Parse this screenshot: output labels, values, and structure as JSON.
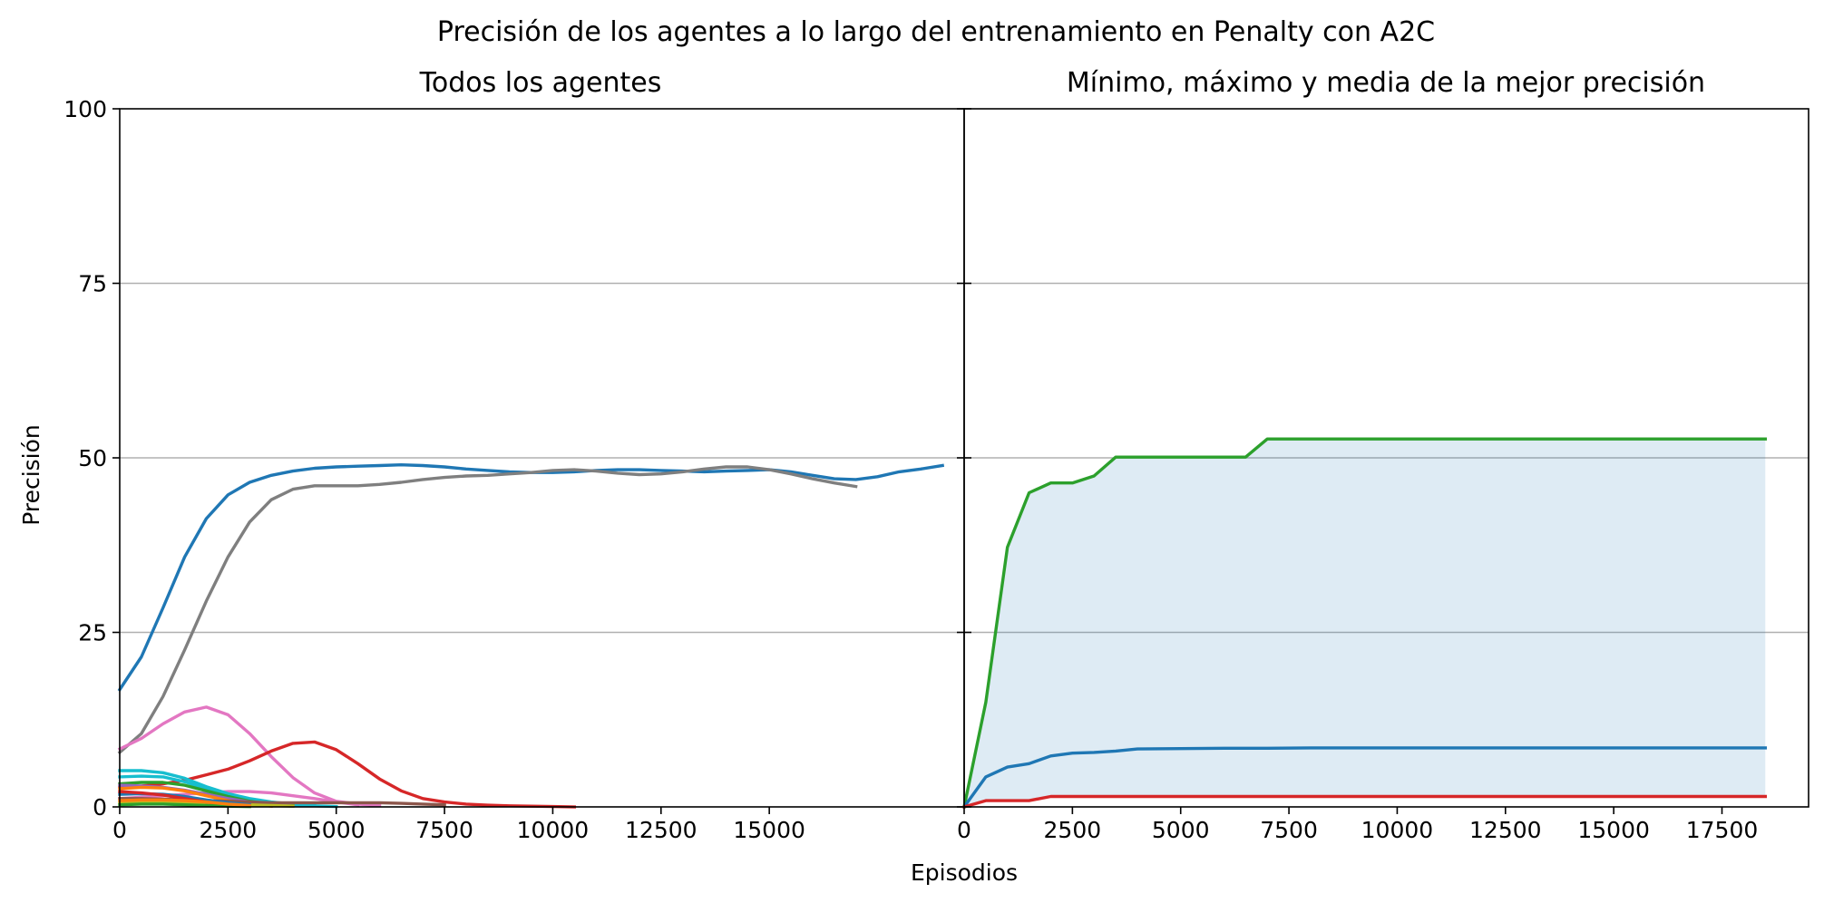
{
  "chart_data": {
    "title": "Precisión de los agentes a lo largo del entrenamiento en Penalty con A2C",
    "xlabel": "Episodios",
    "ylabel": "Precisión",
    "ylim": [
      0,
      100
    ],
    "y_ticks": [
      0,
      25,
      50,
      75,
      100
    ],
    "grid": "horizontal",
    "panels": [
      {
        "title": "Todos los agentes",
        "type": "line",
        "xlim": [
          0,
          19500
        ],
        "x_ticks": [
          0,
          2500,
          5000,
          7500,
          10000,
          12500,
          15000
        ],
        "series": [
          {
            "color": "#1f77b4",
            "x": [
              0,
              500,
              1000,
              1500,
              2000,
              2500,
              3000,
              3500,
              4000,
              4500,
              5000,
              5500,
              6000,
              6500,
              7000,
              7500,
              8000,
              8500,
              9000,
              9500,
              10000,
              10500,
              11000,
              11500,
              12000,
              12500,
              13000,
              13500,
              14000,
              14500,
              15000,
              15500,
              16000,
              16500,
              17000,
              17500,
              18000,
              18500,
              19000
            ],
            "values": [
              16.8,
              21.5,
              28.5,
              35.8,
              41.3,
              44.7,
              46.5,
              47.5,
              48.1,
              48.5,
              48.7,
              48.8,
              48.9,
              49.0,
              48.9,
              48.7,
              48.4,
              48.2,
              48.0,
              47.9,
              47.9,
              48.0,
              48.2,
              48.3,
              48.3,
              48.2,
              48.1,
              48.0,
              48.1,
              48.2,
              48.3,
              48.0,
              47.5,
              47.0,
              46.9,
              47.3,
              48.0,
              48.4,
              48.9
            ]
          },
          {
            "color": "#7f7f7f",
            "x": [
              0,
              500,
              1000,
              1500,
              2000,
              2500,
              3000,
              3500,
              4000,
              4500,
              5000,
              5500,
              6000,
              6500,
              7000,
              7500,
              8000,
              8500,
              9000,
              9500,
              10000,
              10500,
              11000,
              11500,
              12000,
              12500,
              13000,
              13500,
              14000,
              14500,
              15000,
              15500,
              16000,
              16500,
              17000
            ],
            "values": [
              7.8,
              10.5,
              15.8,
              22.5,
              29.5,
              35.8,
              40.8,
              44.0,
              45.5,
              46.0,
              46.0,
              46.0,
              46.2,
              46.5,
              46.9,
              47.2,
              47.4,
              47.5,
              47.7,
              47.9,
              48.2,
              48.3,
              48.1,
              47.8,
              47.6,
              47.7,
              48.0,
              48.4,
              48.7,
              48.7,
              48.3,
              47.7,
              47.0,
              46.4,
              45.9
            ]
          },
          {
            "color": "#e377c2",
            "x": [
              0,
              500,
              1000,
              1500,
              2000,
              2500,
              3000,
              3500,
              4000,
              4500,
              5000,
              5500,
              6000
            ],
            "values": [
              8.3,
              9.8,
              11.9,
              13.6,
              14.3,
              13.2,
              10.5,
              7.2,
              4.2,
              2.0,
              0.8,
              0.4,
              0.2
            ]
          },
          {
            "color": "#d62728",
            "x": [
              0,
              500,
              1000,
              1500,
              2000,
              2500,
              3000,
              3500,
              4000,
              4500,
              5000,
              5500,
              6000,
              6500,
              7000,
              7500,
              8000,
              8500,
              9000,
              9500,
              10000,
              10500
            ],
            "values": [
              2.8,
              3.0,
              3.3,
              3.8,
              4.6,
              5.4,
              6.6,
              8.0,
              9.1,
              9.3,
              8.2,
              6.2,
              4.0,
              2.3,
              1.2,
              0.7,
              0.4,
              0.25,
              0.15,
              0.1,
              0.05,
              0.0
            ]
          },
          {
            "color": "#e377c2",
            "x": [
              0,
              1000,
              2000,
              2500,
              3000,
              3500,
              4000,
              4500,
              5000,
              5500
            ],
            "values": [
              1.2,
              1.6,
              2.0,
              2.2,
              2.2,
              2.0,
              1.6,
              1.2,
              0.7,
              0.3
            ]
          },
          {
            "color": "#17becf",
            "x": [
              0,
              500,
              1000,
              1500,
              2000,
              2500,
              3000,
              3500,
              4000,
              4500
            ],
            "values": [
              5.2,
              5.2,
              4.9,
              4.1,
              2.9,
              1.9,
              1.2,
              0.7,
              0.4,
              0.2
            ]
          },
          {
            "color": "#17becf",
            "x": [
              0,
              500,
              1000,
              1500,
              2000,
              2500,
              3000,
              3500,
              4000,
              4500,
              5000
            ],
            "values": [
              4.3,
              4.4,
              4.3,
              3.6,
              2.6,
              1.8,
              1.1,
              0.6,
              0.3,
              0.15,
              0.05
            ]
          },
          {
            "color": "#2ca02c",
            "x": [
              0,
              500,
              1000,
              1500,
              2000,
              2500,
              3000,
              3500,
              4000
            ],
            "values": [
              3.3,
              3.5,
              3.5,
              3.1,
              2.3,
              1.5,
              0.8,
              0.4,
              0.2
            ]
          },
          {
            "color": "#9467bd",
            "x": [
              0,
              500,
              1000,
              1500,
              2000,
              2500,
              3000,
              3500,
              4000
            ],
            "values": [
              3.1,
              3.0,
              2.8,
              2.4,
              1.8,
              1.2,
              0.7,
              0.3,
              0.1
            ]
          },
          {
            "color": "#ff7f0e",
            "x": [
              0,
              500,
              1000,
              1500,
              2000,
              2500,
              3000,
              3500
            ],
            "values": [
              2.6,
              2.8,
              2.7,
              2.3,
              1.6,
              0.9,
              0.4,
              0.1
            ]
          },
          {
            "color": "#8c564b",
            "x": [
              0,
              500,
              1000,
              1500,
              2000,
              2500,
              3000,
              3500,
              4000,
              4500,
              5000,
              5500,
              6000,
              6500,
              7000,
              7500
            ],
            "values": [
              1.2,
              1.2,
              1.1,
              1.0,
              0.9,
              0.8,
              0.7,
              0.6,
              0.6,
              0.6,
              0.6,
              0.6,
              0.6,
              0.5,
              0.4,
              0.3
            ]
          },
          {
            "color": "#bcbd22",
            "x": [
              0,
              500,
              1000,
              1500,
              2000,
              2500,
              3000,
              3500,
              4000
            ],
            "values": [
              0.6,
              0.7,
              0.7,
              0.6,
              0.5,
              0.4,
              0.3,
              0.2,
              0.1
            ]
          },
          {
            "color": "#1f77b4",
            "x": [
              0,
              500,
              1000,
              1500,
              2000,
              2500,
              3000
            ],
            "values": [
              1.8,
              1.9,
              1.8,
              1.5,
              1.0,
              0.6,
              0.3
            ]
          },
          {
            "color": "#d62728",
            "x": [
              0,
              500,
              1000,
              1500,
              2000,
              2500
            ],
            "values": [
              2.2,
              2.0,
              1.7,
              1.2,
              0.7,
              0.3
            ]
          },
          {
            "color": "#2ca02c",
            "x": [
              0,
              500,
              1000,
              1500,
              2000,
              2500,
              3000
            ],
            "values": [
              0.3,
              0.4,
              0.4,
              0.3,
              0.2,
              0.1,
              0.05
            ]
          },
          {
            "color": "#ff7f0e",
            "x": [
              0,
              500,
              1000,
              1500,
              2000,
              2500,
              3000
            ],
            "values": [
              0.9,
              1.0,
              1.0,
              0.9,
              0.7,
              0.4,
              0.2
            ]
          }
        ]
      },
      {
        "title": "Mínimo, máximo y media de la mejor precisión",
        "type": "line",
        "xlim": [
          0,
          19500
        ],
        "x_ticks": [
          0,
          2500,
          5000,
          7500,
          10000,
          12500,
          15000,
          17500
        ],
        "fill_between": {
          "color": "#1f77b4",
          "opacity": 0.15,
          "lower": "mínimo",
          "upper": "máximo"
        },
        "series": [
          {
            "role": "máximo",
            "color": "#2ca02c",
            "x": [
              0,
              500,
              1000,
              1500,
              2000,
              2500,
              3000,
              3500,
              4000,
              4500,
              5000,
              5500,
              6000,
              6500,
              7000,
              7500,
              8000,
              18500
            ],
            "values": [
              0,
              15.0,
              37.2,
              45.0,
              46.4,
              46.4,
              47.4,
              50.1,
              50.1,
              50.1,
              50.1,
              50.1,
              50.1,
              50.1,
              52.7,
              52.7,
              52.7,
              52.7
            ]
          },
          {
            "role": "media",
            "color": "#1f77b4",
            "x": [
              0,
              500,
              1000,
              1500,
              2000,
              2500,
              3000,
              3500,
              4000,
              5000,
              6000,
              7000,
              8000,
              18500
            ],
            "values": [
              0,
              4.3,
              5.7,
              6.2,
              7.3,
              7.7,
              7.8,
              8.0,
              8.3,
              8.35,
              8.4,
              8.4,
              8.45,
              8.45
            ]
          },
          {
            "role": "mínimo",
            "color": "#d62728",
            "x": [
              0,
              500,
              1000,
              1500,
              2000,
              18500
            ],
            "values": [
              0,
              0.9,
              0.9,
              0.9,
              1.5,
              1.5
            ]
          }
        ]
      }
    ]
  }
}
